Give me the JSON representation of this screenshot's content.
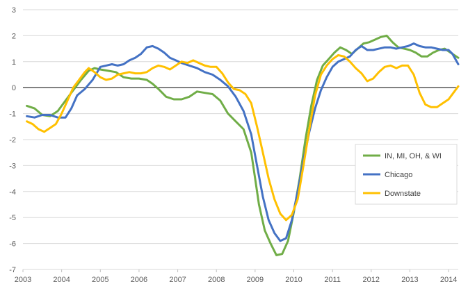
{
  "chart_data": {
    "type": "line",
    "title": "",
    "xlabel": "",
    "ylabel": "",
    "xlim": [
      2003,
      2014.25
    ],
    "ylim": [
      -7,
      3
    ],
    "x_ticks": [
      "2003",
      "2004",
      "2005",
      "2006",
      "2007",
      "2008",
      "2009",
      "2010",
      "2011",
      "2012",
      "2013",
      "2014"
    ],
    "y_ticks": [
      "-7",
      "-6",
      "-5",
      "-4",
      "-3",
      "-2",
      "-1",
      "0",
      "1",
      "2",
      "3"
    ],
    "grid": "horizontal",
    "zero_line": true,
    "legend_position": "right",
    "series": [
      {
        "name": "IN, MI, OH, & WI",
        "color": "#70ad47",
        "points": [
          [
            2003.1,
            -0.7
          ],
          [
            2003.3,
            -0.8
          ],
          [
            2003.5,
            -1.05
          ],
          [
            2003.7,
            -1.1
          ],
          [
            2003.9,
            -0.9
          ],
          [
            2004.1,
            -0.5
          ],
          [
            2004.3,
            -0.1
          ],
          [
            2004.5,
            0.3
          ],
          [
            2004.7,
            0.65
          ],
          [
            2004.85,
            0.75
          ],
          [
            2005.0,
            0.7
          ],
          [
            2005.2,
            0.65
          ],
          [
            2005.4,
            0.6
          ],
          [
            2005.6,
            0.4
          ],
          [
            2005.8,
            0.35
          ],
          [
            2006.0,
            0.35
          ],
          [
            2006.2,
            0.3
          ],
          [
            2006.35,
            0.15
          ],
          [
            2006.5,
            -0.05
          ],
          [
            2006.7,
            -0.35
          ],
          [
            2006.9,
            -0.45
          ],
          [
            2007.1,
            -0.45
          ],
          [
            2007.3,
            -0.35
          ],
          [
            2007.5,
            -0.15
          ],
          [
            2007.7,
            -0.2
          ],
          [
            2007.9,
            -0.25
          ],
          [
            2008.1,
            -0.5
          ],
          [
            2008.3,
            -1.0
          ],
          [
            2008.5,
            -1.3
          ],
          [
            2008.7,
            -1.6
          ],
          [
            2008.9,
            -2.5
          ],
          [
            2009.0,
            -3.5
          ],
          [
            2009.1,
            -4.5
          ],
          [
            2009.25,
            -5.5
          ],
          [
            2009.4,
            -6.0
          ],
          [
            2009.55,
            -6.45
          ],
          [
            2009.7,
            -6.4
          ],
          [
            2009.85,
            -5.9
          ],
          [
            2010.0,
            -4.8
          ],
          [
            2010.15,
            -3.5
          ],
          [
            2010.3,
            -2.0
          ],
          [
            2010.45,
            -0.7
          ],
          [
            2010.6,
            0.3
          ],
          [
            2010.75,
            0.85
          ],
          [
            2010.9,
            1.1
          ],
          [
            2011.05,
            1.35
          ],
          [
            2011.2,
            1.55
          ],
          [
            2011.35,
            1.45
          ],
          [
            2011.5,
            1.3
          ],
          [
            2011.65,
            1.5
          ],
          [
            2011.8,
            1.7
          ],
          [
            2011.95,
            1.75
          ],
          [
            2012.1,
            1.85
          ],
          [
            2012.25,
            1.95
          ],
          [
            2012.4,
            2.0
          ],
          [
            2012.55,
            1.75
          ],
          [
            2012.7,
            1.55
          ],
          [
            2012.85,
            1.5
          ],
          [
            2013.0,
            1.45
          ],
          [
            2013.15,
            1.35
          ],
          [
            2013.3,
            1.2
          ],
          [
            2013.45,
            1.2
          ],
          [
            2013.6,
            1.35
          ],
          [
            2013.75,
            1.45
          ],
          [
            2013.9,
            1.5
          ],
          [
            2014.05,
            1.35
          ],
          [
            2014.25,
            1.15
          ]
        ]
      },
      {
        "name": "Chicago",
        "color": "#4472c4",
        "points": [
          [
            2003.1,
            -1.1
          ],
          [
            2003.3,
            -1.15
          ],
          [
            2003.5,
            -1.05
          ],
          [
            2003.7,
            -1.05
          ],
          [
            2003.9,
            -1.15
          ],
          [
            2004.1,
            -1.15
          ],
          [
            2004.25,
            -0.8
          ],
          [
            2004.4,
            -0.3
          ],
          [
            2004.6,
            -0.05
          ],
          [
            2004.8,
            0.3
          ],
          [
            2005.0,
            0.8
          ],
          [
            2005.15,
            0.85
          ],
          [
            2005.3,
            0.9
          ],
          [
            2005.45,
            0.85
          ],
          [
            2005.6,
            0.9
          ],
          [
            2005.75,
            1.05
          ],
          [
            2005.9,
            1.15
          ],
          [
            2006.05,
            1.3
          ],
          [
            2006.2,
            1.55
          ],
          [
            2006.35,
            1.6
          ],
          [
            2006.5,
            1.5
          ],
          [
            2006.65,
            1.35
          ],
          [
            2006.8,
            1.15
          ],
          [
            2006.95,
            1.05
          ],
          [
            2007.1,
            0.95
          ],
          [
            2007.3,
            0.85
          ],
          [
            2007.5,
            0.75
          ],
          [
            2007.7,
            0.6
          ],
          [
            2007.9,
            0.5
          ],
          [
            2008.1,
            0.3
          ],
          [
            2008.3,
            0.05
          ],
          [
            2008.5,
            -0.35
          ],
          [
            2008.7,
            -0.9
          ],
          [
            2008.9,
            -1.8
          ],
          [
            2009.05,
            -3.0
          ],
          [
            2009.2,
            -4.2
          ],
          [
            2009.35,
            -5.1
          ],
          [
            2009.5,
            -5.6
          ],
          [
            2009.65,
            -5.9
          ],
          [
            2009.8,
            -5.8
          ],
          [
            2009.95,
            -5.1
          ],
          [
            2010.1,
            -4.0
          ],
          [
            2010.25,
            -2.8
          ],
          [
            2010.4,
            -1.7
          ],
          [
            2010.55,
            -0.8
          ],
          [
            2010.7,
            -0.1
          ],
          [
            2010.85,
            0.4
          ],
          [
            2011.0,
            0.8
          ],
          [
            2011.15,
            1.0
          ],
          [
            2011.3,
            1.1
          ],
          [
            2011.45,
            1.2
          ],
          [
            2011.6,
            1.45
          ],
          [
            2011.75,
            1.6
          ],
          [
            2011.9,
            1.45
          ],
          [
            2012.05,
            1.45
          ],
          [
            2012.2,
            1.5
          ],
          [
            2012.35,
            1.55
          ],
          [
            2012.5,
            1.55
          ],
          [
            2012.65,
            1.5
          ],
          [
            2012.8,
            1.55
          ],
          [
            2012.95,
            1.6
          ],
          [
            2013.1,
            1.7
          ],
          [
            2013.25,
            1.6
          ],
          [
            2013.4,
            1.55
          ],
          [
            2013.55,
            1.55
          ],
          [
            2013.7,
            1.5
          ],
          [
            2013.85,
            1.45
          ],
          [
            2014.0,
            1.45
          ],
          [
            2014.1,
            1.3
          ],
          [
            2014.25,
            0.9
          ]
        ]
      },
      {
        "name": "Downstate",
        "color": "#ffc000",
        "points": [
          [
            2003.1,
            -1.3
          ],
          [
            2003.25,
            -1.4
          ],
          [
            2003.4,
            -1.6
          ],
          [
            2003.55,
            -1.7
          ],
          [
            2003.7,
            -1.55
          ],
          [
            2003.85,
            -1.4
          ],
          [
            2004.0,
            -1.0
          ],
          [
            2004.15,
            -0.5
          ],
          [
            2004.3,
            0.0
          ],
          [
            2004.45,
            0.3
          ],
          [
            2004.6,
            0.6
          ],
          [
            2004.7,
            0.75
          ],
          [
            2004.85,
            0.6
          ],
          [
            2005.0,
            0.4
          ],
          [
            2005.15,
            0.3
          ],
          [
            2005.3,
            0.35
          ],
          [
            2005.45,
            0.5
          ],
          [
            2005.6,
            0.55
          ],
          [
            2005.75,
            0.6
          ],
          [
            2005.9,
            0.55
          ],
          [
            2006.05,
            0.55
          ],
          [
            2006.2,
            0.6
          ],
          [
            2006.35,
            0.75
          ],
          [
            2006.5,
            0.85
          ],
          [
            2006.65,
            0.8
          ],
          [
            2006.8,
            0.7
          ],
          [
            2006.95,
            0.85
          ],
          [
            2007.1,
            1.0
          ],
          [
            2007.25,
            0.95
          ],
          [
            2007.4,
            1.05
          ],
          [
            2007.55,
            0.95
          ],
          [
            2007.7,
            0.85
          ],
          [
            2007.85,
            0.8
          ],
          [
            2008.0,
            0.8
          ],
          [
            2008.15,
            0.55
          ],
          [
            2008.3,
            0.2
          ],
          [
            2008.45,
            -0.05
          ],
          [
            2008.6,
            -0.1
          ],
          [
            2008.75,
            -0.25
          ],
          [
            2008.9,
            -0.6
          ],
          [
            2009.05,
            -1.5
          ],
          [
            2009.2,
            -2.5
          ],
          [
            2009.35,
            -3.5
          ],
          [
            2009.5,
            -4.3
          ],
          [
            2009.65,
            -4.85
          ],
          [
            2009.8,
            -5.1
          ],
          [
            2009.95,
            -4.9
          ],
          [
            2010.1,
            -4.3
          ],
          [
            2010.25,
            -3.0
          ],
          [
            2010.4,
            -1.6
          ],
          [
            2010.55,
            -0.3
          ],
          [
            2010.7,
            0.5
          ],
          [
            2010.85,
            0.85
          ],
          [
            2011.0,
            1.1
          ],
          [
            2011.15,
            1.25
          ],
          [
            2011.3,
            1.2
          ],
          [
            2011.45,
            1.0
          ],
          [
            2011.6,
            0.75
          ],
          [
            2011.75,
            0.55
          ],
          [
            2011.9,
            0.25
          ],
          [
            2012.05,
            0.35
          ],
          [
            2012.2,
            0.6
          ],
          [
            2012.35,
            0.8
          ],
          [
            2012.5,
            0.85
          ],
          [
            2012.65,
            0.75
          ],
          [
            2012.8,
            0.85
          ],
          [
            2012.95,
            0.85
          ],
          [
            2013.1,
            0.5
          ],
          [
            2013.25,
            -0.2
          ],
          [
            2013.4,
            -0.65
          ],
          [
            2013.55,
            -0.75
          ],
          [
            2013.7,
            -0.75
          ],
          [
            2013.85,
            -0.6
          ],
          [
            2014.0,
            -0.45
          ],
          [
            2014.15,
            -0.15
          ],
          [
            2014.25,
            0.05
          ]
        ]
      }
    ]
  }
}
